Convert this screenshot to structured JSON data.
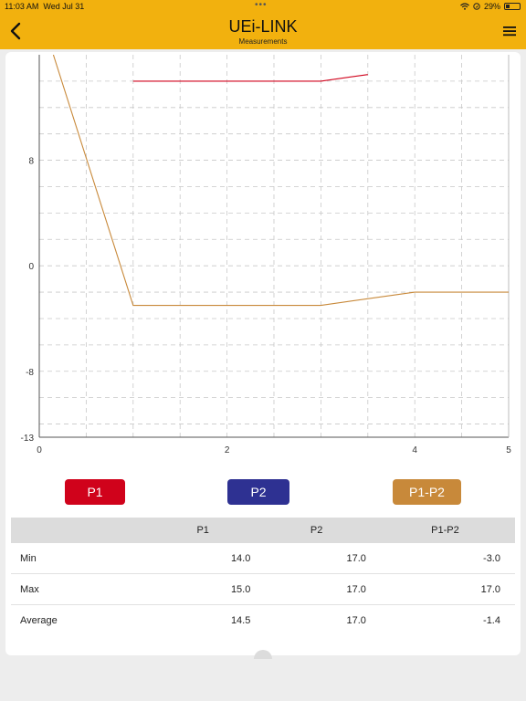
{
  "status_bar": {
    "time": "11:03 AM",
    "date": "Wed Jul 31",
    "battery": "29%",
    "battery_level": 0.29,
    "icons": [
      "wifi-icon",
      "location-icon",
      "battery-icon"
    ]
  },
  "header": {
    "title": "UEi-LINK",
    "subtitle": "Measurements",
    "back_icon": "chevron-left-icon",
    "menu_icon": "hamburger-menu-icon",
    "background": "#f2b10e"
  },
  "chart_data": {
    "type": "line",
    "x_ticks": [
      "0",
      "2",
      "4",
      "5"
    ],
    "y_ticks": [
      "8",
      "0",
      "-8",
      "-13"
    ],
    "xlim": [
      0,
      5
    ],
    "ylim": [
      -13,
      16
    ],
    "grid": true,
    "series": [
      {
        "name": "P1",
        "color": "#d0021b",
        "x": [
          1,
          3,
          3.5
        ],
        "y": [
          14.0,
          14.0,
          14.5
        ]
      },
      {
        "name": "P1-P2",
        "color": "#c8893a",
        "x": [
          0.15,
          1,
          3,
          4,
          5
        ],
        "y": [
          16,
          -3,
          -3,
          -2,
          -2
        ]
      }
    ]
  },
  "legend": [
    {
      "label": "P1",
      "color": "#d0021b"
    },
    {
      "label": "P2",
      "color": "#2e3192"
    },
    {
      "label": "P1-P2",
      "color": "#c8893a"
    }
  ],
  "stats": {
    "headers": [
      "",
      "P1",
      "P2",
      "P1-P2"
    ],
    "rows": [
      {
        "label": "Min",
        "values": [
          "14.0",
          "17.0",
          "-3.0"
        ]
      },
      {
        "label": "Max",
        "values": [
          "15.0",
          "17.0",
          "17.0"
        ]
      },
      {
        "label": "Average",
        "values": [
          "14.5",
          "17.0",
          "-1.4"
        ]
      }
    ]
  }
}
